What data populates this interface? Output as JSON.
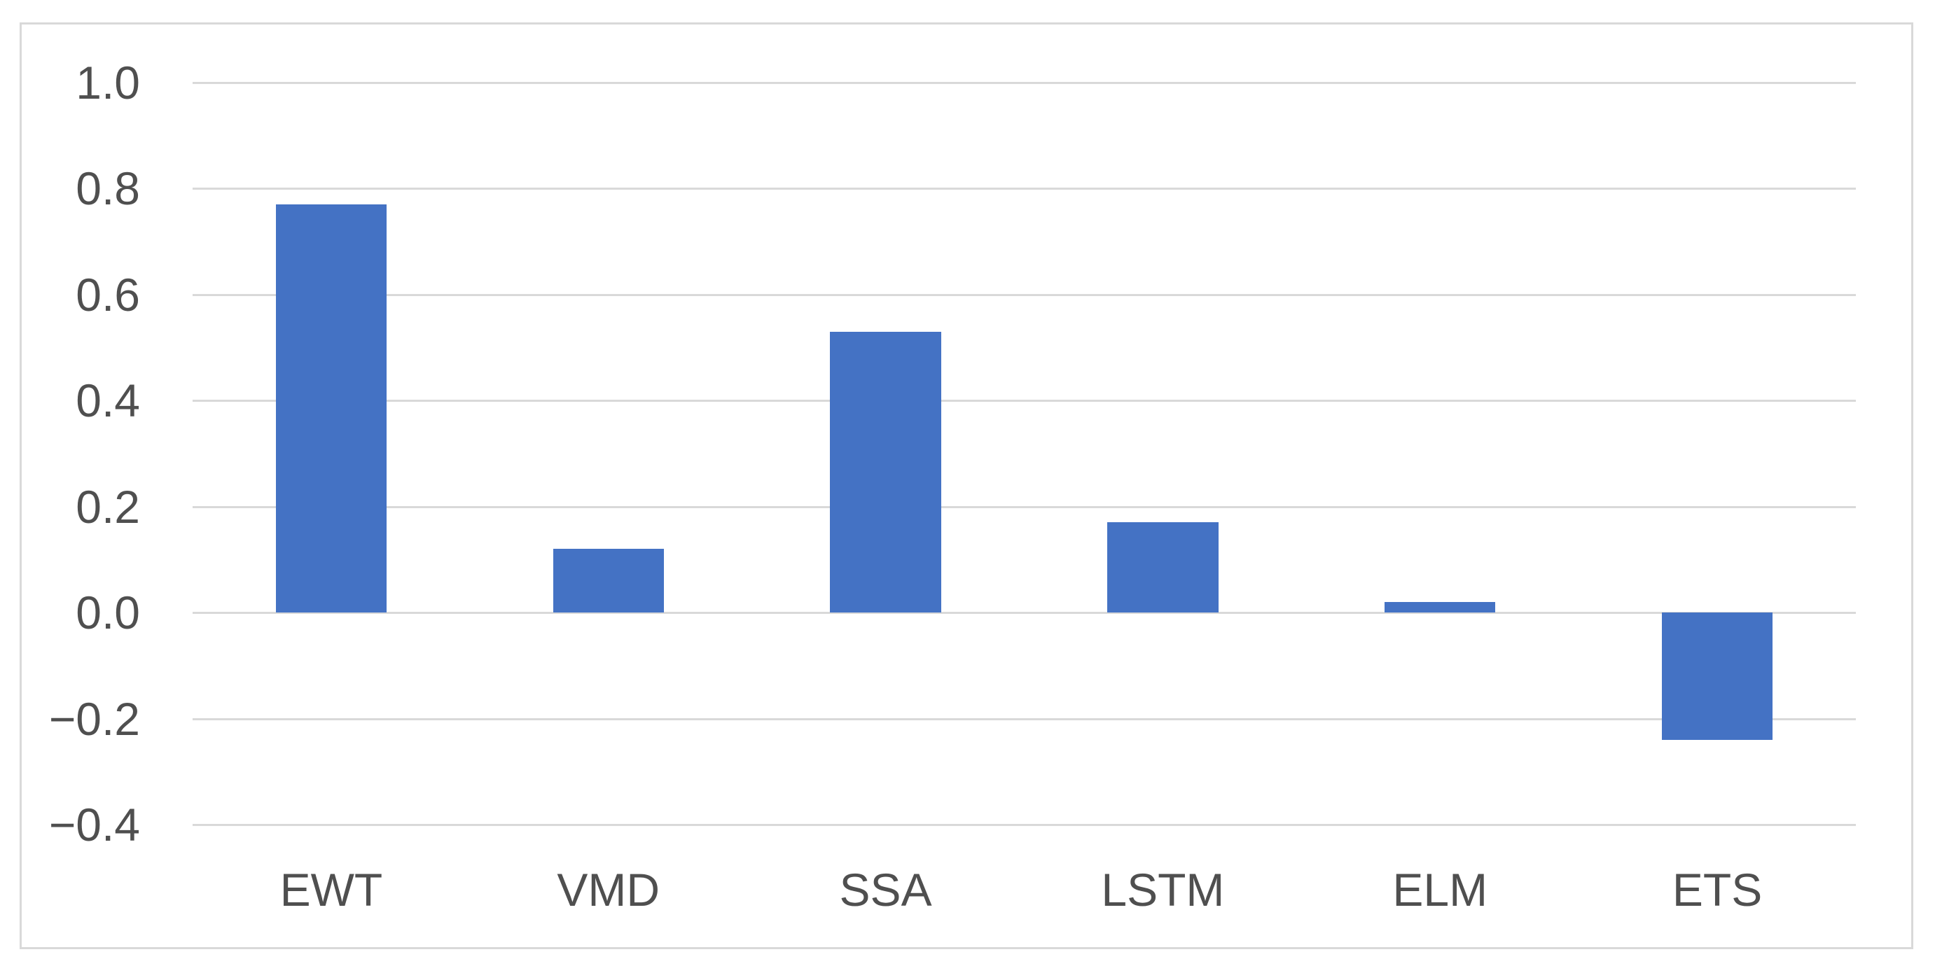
{
  "chart_data": {
    "type": "bar",
    "categories": [
      "EWT",
      "VMD",
      "SSA",
      "LSTM",
      "ELM",
      "ETS"
    ],
    "values": [
      0.77,
      0.12,
      0.53,
      0.17,
      0.02,
      -0.24
    ],
    "series_name": "",
    "title": "",
    "subtitle": "",
    "xlabel": "",
    "ylabel": "",
    "ylim": [
      -0.4,
      1.0
    ],
    "ytick_step": 0.2,
    "ytick_labels": [
      "1.0",
      "0.8",
      "0.6",
      "0.4",
      "0.2",
      "0.0",
      "−0.2",
      "−0.4"
    ],
    "grid": true,
    "legend": false,
    "legend_position": "none",
    "colors": {
      "bar": "#4472c4",
      "gridline": "#d9d9d9",
      "frame_border": "#d9d9d9",
      "text": "#4f4f4f",
      "background": "#ffffff"
    }
  }
}
